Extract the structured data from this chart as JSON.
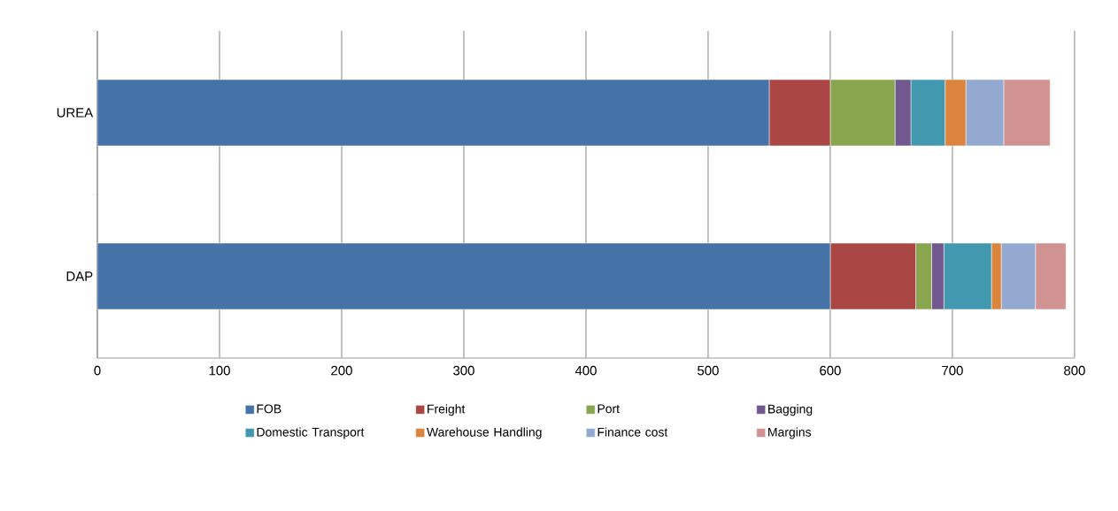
{
  "chart_data": {
    "type": "bar",
    "orientation": "horizontal",
    "stacked": true,
    "categories": [
      "UREA",
      "DAP"
    ],
    "series": [
      {
        "name": "FOB",
        "color": "#4572a7",
        "values": [
          550,
          600
        ]
      },
      {
        "name": "Freight",
        "color": "#aa4643",
        "values": [
          50,
          70
        ]
      },
      {
        "name": "Port",
        "color": "#89a54e",
        "values": [
          53,
          13
        ]
      },
      {
        "name": "Bagging",
        "color": "#71588f",
        "values": [
          13,
          10
        ]
      },
      {
        "name": "Domestic Transport",
        "color": "#4198af",
        "values": [
          28,
          39
        ]
      },
      {
        "name": "Warehouse Handling",
        "color": "#db843d",
        "values": [
          17,
          8
        ]
      },
      {
        "name": "Finance cost",
        "color": "#93a9cf",
        "values": [
          31,
          28
        ]
      },
      {
        "name": "Margins",
        "color": "#d19392",
        "values": [
          38,
          25
        ]
      }
    ],
    "xlim": [
      0,
      800
    ],
    "xticks": [
      0,
      100,
      200,
      300,
      400,
      500,
      600,
      700,
      800
    ],
    "grid": "x",
    "legend": "bottom"
  }
}
